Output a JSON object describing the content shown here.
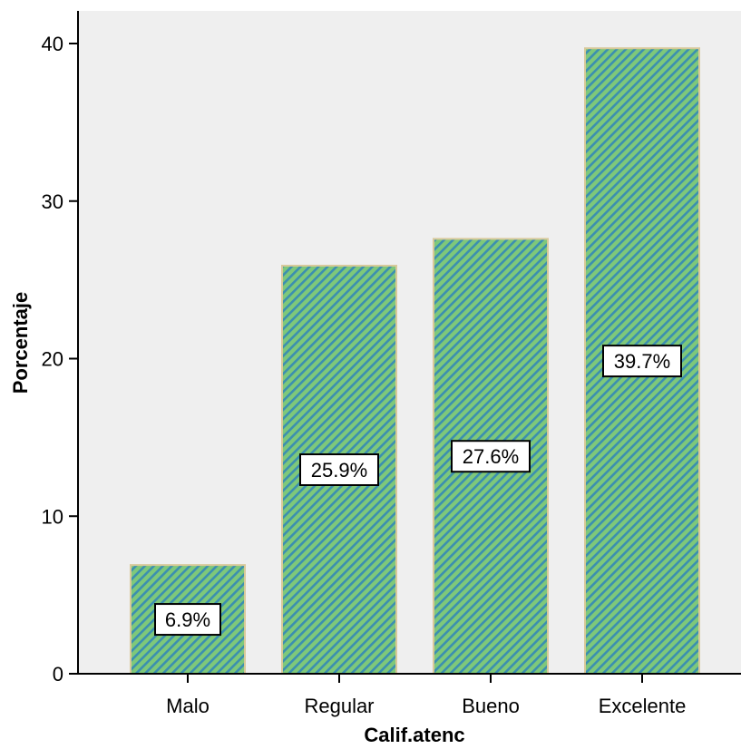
{
  "chart_data": {
    "type": "bar",
    "categories": [
      "Malo",
      "Regular",
      "Bueno",
      "Excelente"
    ],
    "values": [
      6.9,
      25.9,
      27.6,
      39.7
    ],
    "data_labels": [
      "6.9%",
      "25.9%",
      "27.6%",
      "39.7%"
    ],
    "xlabel": "Calif.atenc",
    "ylabel": "Porcentaje",
    "ylim": [
      0,
      40
    ],
    "yticks": [
      0,
      10,
      20,
      30,
      40
    ],
    "grid": false,
    "colors": {
      "plot_background": "#efefef",
      "bar_fill_green": "#7ec87a",
      "bar_stripe_blue": "#3b8fb0",
      "bar_border": "#d8c99a",
      "axis": "#000000"
    }
  }
}
